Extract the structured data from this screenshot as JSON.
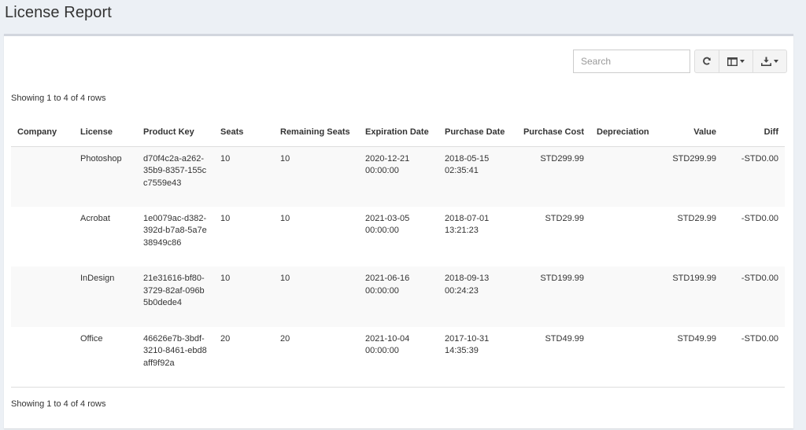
{
  "page": {
    "title": "License Report"
  },
  "toolbar": {
    "search_placeholder": "Search",
    "refresh_icon": "refresh-icon",
    "columns_icon": "columns-icon",
    "export_icon": "download-icon"
  },
  "pagination": {
    "top": "Showing 1 to 4 of 4 rows",
    "bottom": "Showing 1 to 4 of 4 rows"
  },
  "table": {
    "headers": {
      "company": "Company",
      "license": "License",
      "product_key": "Product Key",
      "seats": "Seats",
      "remaining": "Remaining Seats",
      "expiration": "Expiration Date",
      "purchase_date": "Purchase Date",
      "purchase_cost": "Purchase Cost",
      "depreciation": "Depreciation",
      "value": "Value",
      "diff": "Diff"
    },
    "rows": [
      {
        "company": "",
        "license": "Photoshop",
        "product_key": "d70f4c2a-a262-35b9-8357-155cc7559e43",
        "seats": "10",
        "remaining": "10",
        "expiration": "2020-12-21 00:00:00",
        "purchase_date": "2018-05-15 02:35:41",
        "purchase_cost": "STD299.99",
        "depreciation": "",
        "value": "STD299.99",
        "diff": "-STD0.00"
      },
      {
        "company": "",
        "license": "Acrobat",
        "product_key": "1e0079ac-d382-392d-b7a8-5a7e38949c86",
        "seats": "10",
        "remaining": "10",
        "expiration": "2021-03-05 00:00:00",
        "purchase_date": "2018-07-01 13:21:23",
        "purchase_cost": "STD29.99",
        "depreciation": "",
        "value": "STD29.99",
        "diff": "-STD0.00"
      },
      {
        "company": "",
        "license": "InDesign",
        "product_key": "21e31616-bf80-3729-82af-096b5b0dede4",
        "seats": "10",
        "remaining": "10",
        "expiration": "2021-06-16 00:00:00",
        "purchase_date": "2018-09-13 00:24:23",
        "purchase_cost": "STD199.99",
        "depreciation": "",
        "value": "STD199.99",
        "diff": "-STD0.00"
      },
      {
        "company": "",
        "license": "Office",
        "product_key": "46626e7b-3bdf-3210-8461-ebd8aff9f92a",
        "seats": "20",
        "remaining": "20",
        "expiration": "2021-10-04 00:00:00",
        "purchase_date": "2017-10-31 14:35:39",
        "purchase_cost": "STD49.99",
        "depreciation": "",
        "value": "STD49.99",
        "diff": "-STD0.00"
      }
    ]
  }
}
